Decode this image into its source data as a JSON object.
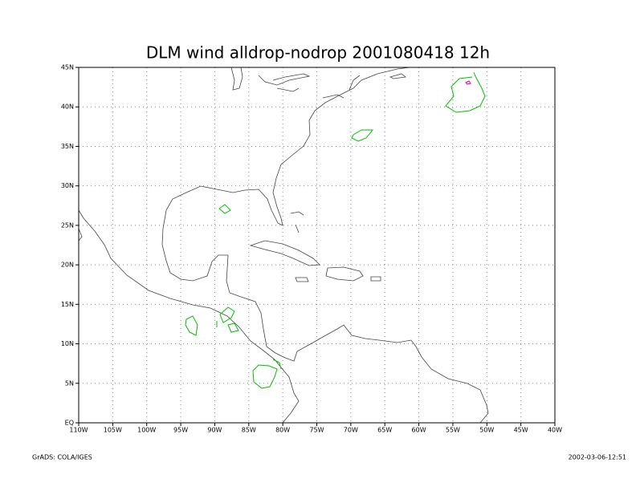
{
  "title": "DLM wind alldrop-nodrop 2001080418 12h",
  "x_axis": {
    "ticks": [
      {
        "value": -110,
        "label": "110W"
      },
      {
        "value": -105,
        "label": "105W"
      },
      {
        "value": -100,
        "label": "100W"
      },
      {
        "value": -95,
        "label": "95W"
      },
      {
        "value": -90,
        "label": "90W"
      },
      {
        "value": -85,
        "label": "85W"
      },
      {
        "value": -80,
        "label": "80W"
      },
      {
        "value": -75,
        "label": "75W"
      },
      {
        "value": -70,
        "label": "70W"
      },
      {
        "value": -65,
        "label": "65W"
      },
      {
        "value": -60,
        "label": "60W"
      },
      {
        "value": -55,
        "label": "55W"
      },
      {
        "value": -50,
        "label": "50W"
      },
      {
        "value": -45,
        "label": "45W"
      },
      {
        "value": -40,
        "label": "40W"
      }
    ]
  },
  "y_axis": {
    "ticks": [
      {
        "value": 0,
        "label": "EQ"
      },
      {
        "value": 5,
        "label": "5N"
      },
      {
        "value": 10,
        "label": "10N"
      },
      {
        "value": 15,
        "label": "15N"
      },
      {
        "value": 20,
        "label": "20N"
      },
      {
        "value": 25,
        "label": "25N"
      },
      {
        "value": 30,
        "label": "30N"
      },
      {
        "value": 35,
        "label": "35N"
      },
      {
        "value": 40,
        "label": "40N"
      },
      {
        "value": 45,
        "label": "45N"
      }
    ]
  },
  "footer": {
    "left": "GrADS: COLA/IGES",
    "right": "2002-03-06-12:51"
  }
}
